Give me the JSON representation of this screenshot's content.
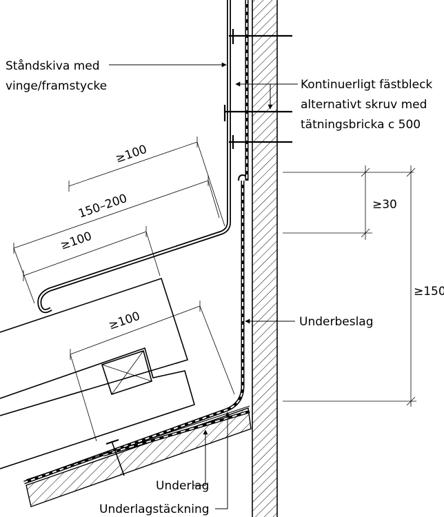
{
  "labels": {
    "standskiva": [
      "Ståndskiva med",
      "vinge/framstycke"
    ],
    "fastbleck": [
      "Kontinuerligt fästbleck",
      "alternativt skruv med",
      "tätningsbricka c 500"
    ],
    "underbeslag": "Underbeslag",
    "underlag": "Underlag",
    "underlagstackning": "Underlagstäckning"
  },
  "dimensions": {
    "d1": "≥100",
    "d2": "150–200",
    "d3": "≥100",
    "d4": "≥100",
    "d5": "≥30",
    "d6": "≥150"
  },
  "colors": {
    "ink": "#000000",
    "background": "#ffffff"
  }
}
